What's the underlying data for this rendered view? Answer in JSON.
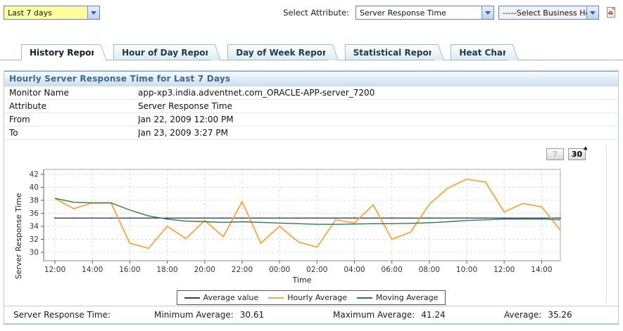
{
  "top_bar": {
    "time_range": {
      "value": "Last 7 days"
    },
    "attribute_label": "Select Attribute:",
    "attribute_select": {
      "value": "Server Response Time"
    },
    "business_hours_select": {
      "value": "-----Select Business Ho"
    },
    "pdf_icon": "pdf-export-icon"
  },
  "tabs": [
    {
      "label": "History Report",
      "active": true
    },
    {
      "label": "Hour of Day Report",
      "active": false
    },
    {
      "label": "Day of Week Report",
      "active": false
    },
    {
      "label": "Statistical Report",
      "active": false
    },
    {
      "label": "Heat Chart",
      "active": false
    }
  ],
  "report": {
    "title": "Hourly Server Response Time for Last 7 Days",
    "rows": [
      {
        "label": "Monitor Name",
        "value": "app-xp3.india.adventnet.com_ORACLE-APP-server_7200"
      },
      {
        "label": "Attribute",
        "value": "Server Response Time"
      },
      {
        "label": "From",
        "value": "Jan 22, 2009 12:00 PM"
      },
      {
        "label": "To",
        "value": "Jan 23, 2009 3:27 PM"
      }
    ],
    "period_buttons": [
      {
        "label": "7",
        "enabled": false
      },
      {
        "label": "30",
        "enabled": true
      }
    ]
  },
  "chart_data": {
    "type": "line",
    "title": "Hourly Server Response Time for Last 7 Days",
    "xlabel": "Time",
    "ylabel": "Server Response Time",
    "ylim": [
      29,
      43
    ],
    "yticks": [
      30,
      32,
      34,
      36,
      38,
      40,
      42
    ],
    "grid": "dashed",
    "legend_position": "bottom-center",
    "x_tick_every": 2,
    "categories": [
      "12:00",
      "13:00",
      "14:00",
      "15:00",
      "16:00",
      "17:00",
      "18:00",
      "19:00",
      "20:00",
      "21:00",
      "22:00",
      "23:00",
      "00:00",
      "01:00",
      "02:00",
      "03:00",
      "04:00",
      "05:00",
      "06:00",
      "07:00",
      "08:00",
      "09:00",
      "10:00",
      "11:00",
      "12:00",
      "13:00",
      "14:00",
      "15:00"
    ],
    "series": [
      {
        "name": "Average value",
        "color": "#333A8C",
        "values": [
          35.26,
          35.26,
          35.26,
          35.26,
          35.26,
          35.26,
          35.26,
          35.26,
          35.26,
          35.26,
          35.26,
          35.26,
          35.26,
          35.26,
          35.26,
          35.26,
          35.26,
          35.26,
          35.26,
          35.26,
          35.26,
          35.26,
          35.26,
          35.26,
          35.26,
          35.26,
          35.26,
          35.26
        ]
      },
      {
        "name": "Hourly Average",
        "color": "#FFA33F",
        "values": [
          38.3,
          36.7,
          37.6,
          37.6,
          31.4,
          30.61,
          34.0,
          32.1,
          34.9,
          32.4,
          37.8,
          31.4,
          34.0,
          31.6,
          30.8,
          35.0,
          34.5,
          37.3,
          32.0,
          33.1,
          37.4,
          39.9,
          41.24,
          40.8,
          36.2,
          37.5,
          37.0,
          33.4
        ]
      },
      {
        "name": "Moving Average",
        "color": "#2E7D3E",
        "values": [
          38.3,
          37.7,
          37.6,
          37.6,
          36.5,
          35.6,
          35.1,
          34.8,
          34.7,
          34.6,
          34.7,
          34.6,
          34.5,
          34.4,
          34.3,
          34.3,
          34.35,
          34.4,
          34.4,
          34.45,
          34.55,
          34.7,
          34.9,
          35.0,
          35.1,
          35.1,
          35.1,
          35.0
        ]
      }
    ]
  },
  "summary": {
    "prefix": "Server Response Time:",
    "items": [
      {
        "label": "Minimum Average:",
        "value": "30.61"
      },
      {
        "label": "Maximum Average:",
        "value": "41.24"
      },
      {
        "label": "Average:",
        "value": "35.26"
      }
    ]
  },
  "colors": {
    "header_text": "#3F688F",
    "container_border": "#B5D1E6",
    "tab_border": "#9CBCCB"
  }
}
